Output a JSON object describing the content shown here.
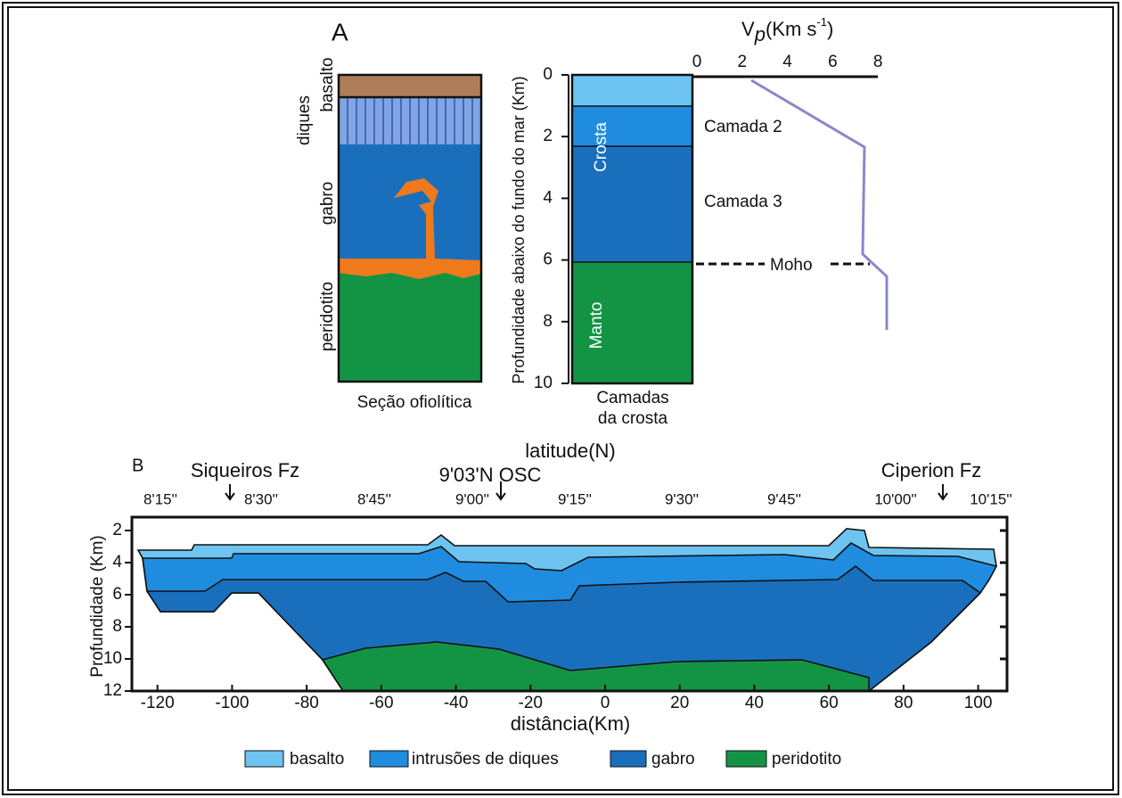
{
  "panel_a": {
    "label": "A",
    "ophiolite_section": {
      "layers": [
        "basalto",
        "diques",
        "gabro",
        "peridotito"
      ],
      "caption": "Seção ofiolítica"
    },
    "crust_column": {
      "depth_axis_title": "Profundidade abaixo do fundo do mar (Km)",
      "depth_ticks": [
        0,
        2,
        4,
        6,
        8,
        10
      ],
      "crust_label": "Crosta",
      "mantle_label": "Manto",
      "layers": [
        "Camada 2",
        "Camada 3"
      ],
      "moho": "Moho",
      "caption": [
        "Camadas",
        "da crosta"
      ]
    },
    "vp_axis": {
      "title": {
        "symbol": "V",
        "subscript": "p",
        "unit": "(Km s",
        "exponent": "-1",
        "close": ")"
      },
      "ticks": [
        0,
        2,
        4,
        6,
        8
      ]
    }
  },
  "panel_b": {
    "label": "B",
    "top_axis_title": "latitude(N)",
    "features": [
      "Siqueiros Fz",
      "9'03'N OSC",
      "Ciperion Fz"
    ],
    "latitude_labels": [
      "8'15''",
      "8'30''",
      "8'45''",
      "9'00''",
      "9'15''",
      "9'30''",
      "9'45''",
      "10'00''",
      "10'15''"
    ],
    "x_axis_title": "distância(Km)",
    "y_axis_title": "Profundidade (Km)",
    "xticks": [
      -120,
      -100,
      -80,
      -60,
      -40,
      -20,
      0,
      20,
      40,
      60,
      80,
      100
    ],
    "yticks": [
      2,
      4,
      6,
      8,
      10,
      12
    ]
  },
  "legend": [
    "basalto",
    "intrusões de diques",
    "gabro",
    "peridotito"
  ]
}
